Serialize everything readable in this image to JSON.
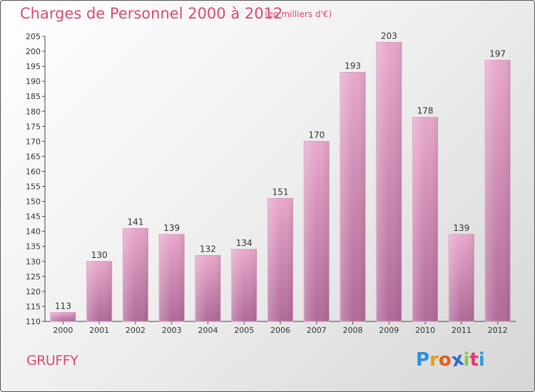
{
  "header": {
    "title": "Charges de Personnel 2000 à 2012",
    "subtitle": "(en milliers d'€)"
  },
  "footer": {
    "commune": "GRUFFY",
    "brand_letters": [
      "P",
      "r",
      "o",
      "x",
      "i",
      "t",
      "i"
    ],
    "brand_colors": [
      "#2a8fd8",
      "#e89a1a",
      "#e85a1a",
      "#2a6fd0",
      "#8cc63e",
      "#e83a6a",
      "#2a9fd8"
    ]
  },
  "colors": {
    "bar_light": "#e8a8cc",
    "bar_dark": "#b06a98",
    "text": "#333333",
    "accent": "#d94a6e"
  },
  "chart_data": {
    "type": "bar",
    "categories": [
      "2000",
      "2001",
      "2002",
      "2003",
      "2004",
      "2005",
      "2006",
      "2007",
      "2008",
      "2009",
      "2010",
      "2011",
      "2012"
    ],
    "values": [
      113,
      130,
      141,
      139,
      132,
      134,
      151,
      170,
      193,
      203,
      178,
      139,
      197
    ],
    "title": "Charges de Personnel 2000 à 2012",
    "subtitle": "(en milliers d'€)",
    "xlabel": "",
    "ylabel": "",
    "ylim": [
      110,
      205
    ],
    "yticks": [
      110,
      115,
      120,
      125,
      130,
      135,
      140,
      145,
      150,
      155,
      160,
      165,
      170,
      175,
      180,
      185,
      190,
      195,
      200,
      205
    ],
    "grid": false,
    "legend": "none"
  }
}
